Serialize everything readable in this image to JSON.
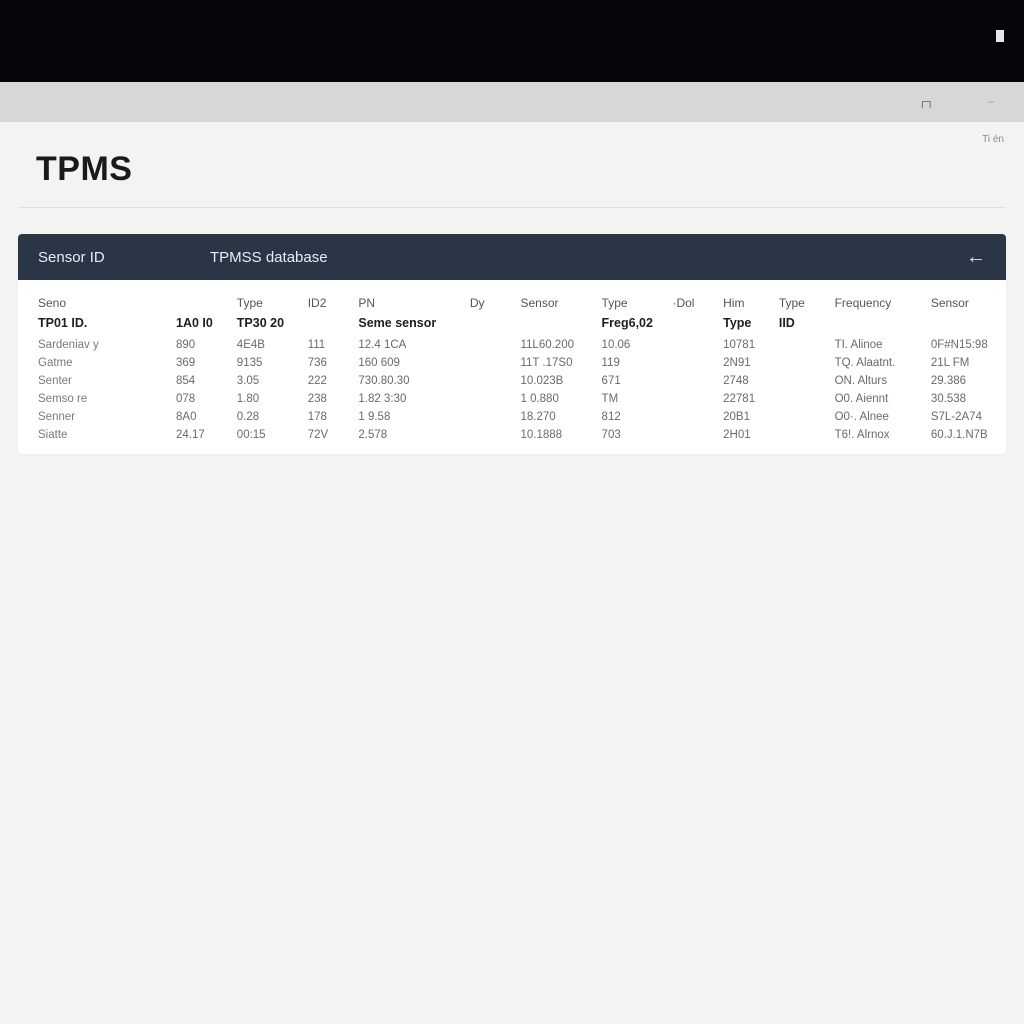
{
  "colors": {
    "top_bar": "#04060a",
    "subheader": "#d8d7d6",
    "content_bg": "#f4f3f1",
    "panel_header": "#2a3646",
    "panel_header_text": "#e9edf1",
    "title_text": "#1a1a1a",
    "divider": "#e2e0dd",
    "row_text": "#7a7a76"
  },
  "header": {
    "small_note": "Ti én"
  },
  "page": {
    "title": "TPMS"
  },
  "panel": {
    "left_label": "Sensor ID",
    "title": "TPMSS database",
    "back_glyph": "←"
  },
  "table": {
    "type": "table",
    "columns": [
      "Seno",
      "",
      "Type",
      "ID2",
      "PN",
      "Dy",
      "Sensor",
      "Type",
      "·Dol",
      "Him",
      "Type",
      "Frequency",
      "Sensor"
    ],
    "subheader": [
      "TP01 ID.",
      "1A0 I0",
      "TP30 20",
      "",
      "Seme sensor",
      "",
      "",
      "Freg6,02",
      "",
      "Type",
      "IID",
      "",
      ""
    ],
    "rows": [
      [
        "Sardeniav y",
        "890",
        "4E4B",
        "111",
        "12.4 1CA",
        "",
        "11L60.200",
        "10.06",
        "",
        "10781",
        "",
        "TI. Alinoe",
        "0F#N15:98"
      ],
      [
        "Gatme",
        "369",
        "9135",
        "736",
        "160 609",
        "",
        "11T .17S0",
        "119",
        "",
        "2N91",
        "",
        "TQ. Alaatnt.",
        "21L FM"
      ],
      [
        "Senter",
        "854",
        "3.05",
        "222",
        "730.80.30",
        "",
        "10.023B",
        "671",
        "",
        "2748",
        "",
        "ON. Alturs",
        "29.386"
      ],
      [
        "Semso re",
        "078",
        "1.80",
        "238",
        "1.82 3:30",
        "",
        "1 0.880",
        "TM",
        "",
        "22781",
        "",
        "O0. Aiennt",
        "30.538"
      ],
      [
        "Senner",
        "8A0",
        "0.28",
        "178",
        "1 9.58",
        "",
        "18.270",
        "812",
        "",
        "20B1",
        "",
        "O0·. Alnee",
        "S7L-2A74"
      ],
      [
        "Siatte",
        "24.17",
        "00:15",
        "72V",
        "2.578",
        "",
        "10.1888",
        "703",
        "",
        "2H01",
        "",
        "T6!. Alrnox",
        "60.J.1.N7B"
      ]
    ]
  }
}
